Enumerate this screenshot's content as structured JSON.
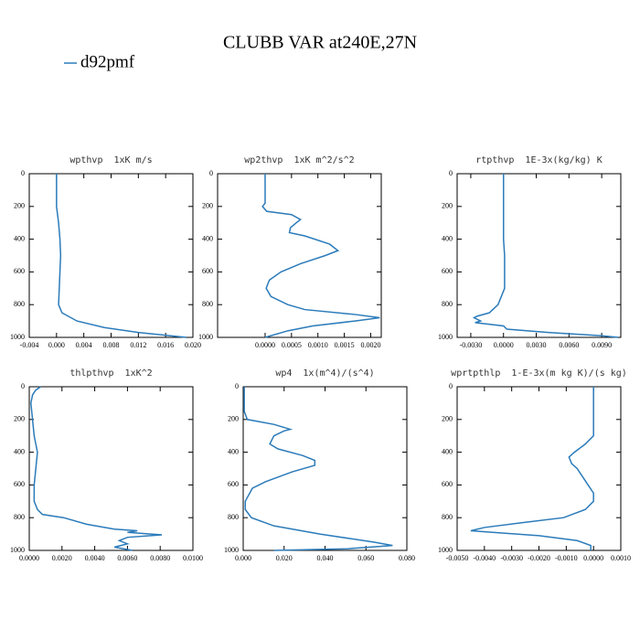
{
  "title": "CLUBB VAR at240E,27N",
  "series_name": "d92pmf",
  "color": "#2b7bba",
  "chart_data": [
    {
      "type": "line",
      "title": "wpthvp  1xK m/s",
      "y": [
        0,
        100,
        200,
        300,
        400,
        500,
        600,
        700,
        800,
        850,
        900,
        940,
        970,
        1000
      ],
      "values": [
        0.0,
        0.0,
        0.0,
        0.0003,
        0.0005,
        0.0006,
        0.0005,
        0.0004,
        0.0003,
        0.0008,
        0.003,
        0.007,
        0.012,
        0.019
      ],
      "xlim": [
        -0.004,
        0.02
      ],
      "xticks": [
        {
          "value": -0.004,
          "label": "-0.004"
        },
        {
          "value": 0,
          "label": "0.000"
        },
        {
          "value": 0.004,
          "label": "0.004"
        },
        {
          "value": 0.008,
          "label": "0.008"
        },
        {
          "value": 0.012,
          "label": "0.012"
        },
        {
          "value": 0.016,
          "label": "0.016"
        },
        {
          "value": 0.02,
          "label": "0.020"
        }
      ],
      "ylim": [
        1000,
        0
      ],
      "yticks": [
        0,
        200,
        400,
        600,
        800,
        1000
      ]
    },
    {
      "type": "line",
      "title": "wp2thvp  1xK m^2/s^2",
      "y": [
        0,
        180,
        200,
        230,
        250,
        280,
        300,
        330,
        360,
        380,
        430,
        470,
        500,
        550,
        600,
        650,
        700,
        750,
        800,
        830,
        860,
        880,
        900,
        930,
        960,
        1000
      ],
      "values": [
        0.0,
        0.0,
        -5e-05,
        3e-05,
        0.0005,
        0.00067,
        0.00059,
        0.00048,
        0.00046,
        0.00075,
        0.00122,
        0.00138,
        0.00114,
        0.00067,
        0.0003,
        8e-05,
        2e-05,
        0.00011,
        0.00043,
        0.00075,
        0.0017,
        0.00217,
        0.0017,
        0.0009,
        0.00043,
        0.0
      ],
      "xlim": [
        -0.0009,
        0.0022
      ],
      "xticks": [
        {
          "value": 0,
          "label": "0.0000"
        },
        {
          "value": 0.0005,
          "label": "0.0005"
        },
        {
          "value": 0.001,
          "label": "0.0010"
        },
        {
          "value": 0.0015,
          "label": "0.0015"
        },
        {
          "value": 0.002,
          "label": "0.0020"
        }
      ],
      "ylim": [
        1000,
        0
      ],
      "yticks": [
        0,
        200,
        400,
        600,
        800,
        1000
      ]
    },
    {
      "type": "line",
      "title": "rtpthvp  1E-3x(kg/kg) K",
      "y": [
        0,
        200,
        400,
        500,
        600,
        700,
        800,
        850,
        870,
        880,
        900,
        910,
        930,
        950,
        970,
        990,
        1000
      ],
      "values": [
        0.0,
        0.0,
        0.0,
        0.0001,
        0.0001,
        0.0001,
        -0.0005,
        -0.0013,
        -0.0024,
        -0.0027,
        -0.0021,
        -0.0026,
        0.0,
        0.0003,
        0.0041,
        0.009,
        0.0105
      ],
      "xlim": [
        -0.00425,
        0.01075
      ],
      "xticks": [
        {
          "value": -0.003,
          "label": "-0.0030"
        },
        {
          "value": 0,
          "label": "0.0000"
        },
        {
          "value": 0.003,
          "label": "0.0030"
        },
        {
          "value": 0.006,
          "label": "0.0060"
        },
        {
          "value": 0.009,
          "label": "0.0090"
        }
      ],
      "ylim": [
        1000,
        0
      ],
      "yticks": [
        0,
        200,
        400,
        600,
        800,
        1000
      ]
    },
    {
      "type": "line",
      "title": "thlpthvp  1xK^2",
      "y": [
        0,
        20,
        50,
        100,
        200,
        300,
        400,
        500,
        600,
        700,
        750,
        780,
        800,
        840,
        870,
        880,
        890,
        905,
        920,
        940,
        960,
        980,
        1000
      ],
      "values": [
        0.0007,
        0.0004,
        0.0002,
        0.0001,
        0.0002,
        0.0003,
        0.0005,
        0.0004,
        0.0003,
        0.0003,
        0.0005,
        0.0008,
        0.0021,
        0.0035,
        0.0052,
        0.0066,
        0.006,
        0.0081,
        0.006,
        0.0055,
        0.006,
        0.0052,
        0.0063
      ],
      "xlim": [
        0,
        0.01
      ],
      "xticks": [
        {
          "value": 0,
          "label": "0.0000"
        },
        {
          "value": 0.002,
          "label": "0.0020"
        },
        {
          "value": 0.004,
          "label": "0.0040"
        },
        {
          "value": 0.006,
          "label": "0.0060"
        },
        {
          "value": 0.008,
          "label": "0.0080"
        },
        {
          "value": 0.01,
          "label": "0.0100"
        }
      ],
      "ylim": [
        1000,
        0
      ],
      "yticks": [
        0,
        200,
        400,
        600,
        800,
        1000
      ]
    },
    {
      "type": "line",
      "title": "wp4  1x(m^4)/(s^4)",
      "y": [
        0,
        150,
        200,
        230,
        260,
        270,
        300,
        350,
        380,
        420,
        450,
        480,
        520,
        580,
        620,
        700,
        750,
        800,
        850,
        900,
        950,
        970,
        990,
        1000
      ],
      "values": [
        0.0005,
        0.0005,
        0.002,
        0.015,
        0.023,
        0.02,
        0.015,
        0.013,
        0.017,
        0.029,
        0.035,
        0.035,
        0.024,
        0.011,
        0.0045,
        0.001,
        0.001,
        0.004,
        0.015,
        0.0375,
        0.064,
        0.073,
        0.051,
        0.015
      ],
      "xlim": [
        0,
        0.08
      ],
      "xticks": [
        {
          "value": 0,
          "label": "0.000"
        },
        {
          "value": 0.02,
          "label": "0.020"
        },
        {
          "value": 0.04,
          "label": "0.040"
        },
        {
          "value": 0.06,
          "label": "0.060"
        },
        {
          "value": 0.08,
          "label": "0.080"
        }
      ],
      "ylim": [
        1000,
        0
      ],
      "yticks": [
        0,
        200,
        400,
        600,
        800,
        1000
      ]
    },
    {
      "type": "line",
      "title": "wprtpthlp  1-E-3x(m kg K)/(s kg)",
      "y": [
        0,
        300,
        350,
        400,
        430,
        470,
        500,
        550,
        600,
        650,
        700,
        750,
        800,
        830,
        860,
        880,
        890,
        910,
        940,
        970,
        1000
      ],
      "values": [
        0.0,
        0.0,
        -0.0003,
        -0.0007,
        -0.0009,
        -0.0008,
        -0.0006,
        -0.0004,
        -0.0002,
        0.0,
        0.0,
        -0.0003,
        -0.0011,
        -0.0026,
        -0.004,
        -0.0045,
        -0.0037,
        -0.002,
        -0.0006,
        -0.0001,
        -0.0001
      ],
      "xlim": [
        -0.005,
        0.001
      ],
      "xticks": [
        {
          "value": -0.005,
          "label": "-0.0050"
        },
        {
          "value": -0.004,
          "label": "-0.0040"
        },
        {
          "value": -0.003,
          "label": "-0.0030"
        },
        {
          "value": -0.002,
          "label": "-0.0020"
        },
        {
          "value": -0.001,
          "label": "-0.0010"
        },
        {
          "value": 0,
          "label": "0.0000"
        },
        {
          "value": 0.001,
          "label": "0.0010"
        }
      ],
      "ylim": [
        1000,
        0
      ],
      "yticks": [
        0,
        200,
        400,
        600,
        800,
        1000
      ]
    }
  ]
}
